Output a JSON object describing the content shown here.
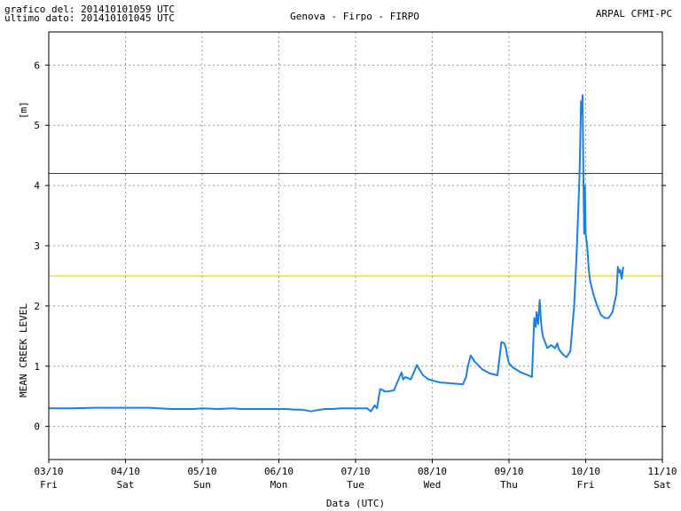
{
  "header": {
    "generated": "grafico del: 201410101059 UTC",
    "last_data": "ultimo dato: 201410101045 UTC",
    "title": "Genova - Firpo - FIRPO",
    "source": "ARPAL CFMI-PC"
  },
  "colors": {
    "series": "#1a80e6",
    "threshold_red": "#c00000",
    "threshold_yellow": "#f0c000",
    "grid": "#9a9a9a",
    "axis": "#000000"
  },
  "chart_data": {
    "type": "line",
    "xlabel": "Data (UTC)",
    "ylabel": "MEAN CREEK LEVEL",
    "yunit": "[m]",
    "ylim": [
      -0.55,
      6.55
    ],
    "yticks": [
      0,
      1,
      2,
      3,
      4,
      5,
      6
    ],
    "x_axis": "days starting 03/10",
    "xlim": [
      0,
      8
    ],
    "xticks": [
      {
        "date": "03/10",
        "day": "Fri"
      },
      {
        "date": "04/10",
        "day": "Sat"
      },
      {
        "date": "05/10",
        "day": "Sun"
      },
      {
        "date": "06/10",
        "day": "Mon"
      },
      {
        "date": "07/10",
        "day": "Tue"
      },
      {
        "date": "08/10",
        "day": "Wed"
      },
      {
        "date": "09/10",
        "day": "Thu"
      },
      {
        "date": "10/10",
        "day": "Fri"
      },
      {
        "date": "11/10",
        "day": "Sat"
      }
    ],
    "grid": true,
    "thresholds": [
      {
        "value": 4.2,
        "color": "#c00000"
      },
      {
        "value": 2.5,
        "color": "#f0c000"
      }
    ],
    "series": [
      {
        "x": [
          0,
          0.3,
          0.6,
          1.0,
          1.3,
          1.6,
          1.9,
          2.0,
          2.2,
          2.4,
          2.5,
          2.7,
          2.9,
          3.1,
          3.2,
          3.3,
          3.42,
          3.5,
          3.6,
          3.7,
          3.8,
          4.0,
          4.15,
          4.2,
          4.25,
          4.28,
          4.32,
          4.36,
          4.38,
          4.42,
          4.5,
          4.6,
          4.62,
          4.65,
          4.72,
          4.8,
          4.83,
          4.88,
          4.95,
          5.1,
          5.2,
          5.3,
          5.4,
          5.44,
          5.46,
          5.5,
          5.55,
          5.65,
          5.75,
          5.85,
          5.9,
          5.94,
          5.96,
          5.98,
          6.0,
          6.05,
          6.15,
          6.25,
          6.3,
          6.33,
          6.35,
          6.36,
          6.38,
          6.4,
          6.42,
          6.44,
          6.5,
          6.55,
          6.6,
          6.63,
          6.65,
          6.7,
          6.75,
          6.8,
          6.85,
          6.88,
          6.9,
          6.92,
          6.94,
          6.95,
          6.96,
          6.97,
          6.98,
          6.99,
          7.0,
          7.02,
          7.04,
          7.06,
          7.08,
          7.1,
          7.15,
          7.2,
          7.25,
          7.3,
          7.35,
          7.4,
          7.42,
          7.44,
          7.45,
          7.47,
          7.49
        ],
        "values": [
          0.3,
          0.3,
          0.31,
          0.31,
          0.31,
          0.29,
          0.29,
          0.3,
          0.29,
          0.3,
          0.29,
          0.29,
          0.29,
          0.29,
          0.28,
          0.28,
          0.25,
          0.27,
          0.29,
          0.29,
          0.3,
          0.3,
          0.3,
          0.25,
          0.35,
          0.3,
          0.62,
          0.6,
          0.58,
          0.58,
          0.6,
          0.9,
          0.78,
          0.82,
          0.78,
          1.02,
          0.95,
          0.85,
          0.78,
          0.73,
          0.72,
          0.71,
          0.7,
          0.82,
          0.97,
          1.18,
          1.08,
          0.95,
          0.88,
          0.85,
          1.4,
          1.38,
          1.3,
          1.15,
          1.05,
          0.98,
          0.9,
          0.85,
          0.82,
          1.8,
          1.65,
          1.9,
          1.7,
          2.1,
          1.7,
          1.5,
          1.3,
          1.35,
          1.3,
          1.38,
          1.28,
          1.2,
          1.15,
          1.25,
          2.0,
          2.8,
          3.5,
          4.2,
          5.4,
          5.2,
          5.5,
          4.2,
          3.2,
          4.0,
          3.2,
          3.0,
          2.6,
          2.4,
          2.3,
          2.2,
          2.0,
          1.85,
          1.8,
          1.8,
          1.9,
          2.2,
          2.65,
          2.55,
          2.6,
          2.45,
          2.65
        ]
      }
    ]
  }
}
